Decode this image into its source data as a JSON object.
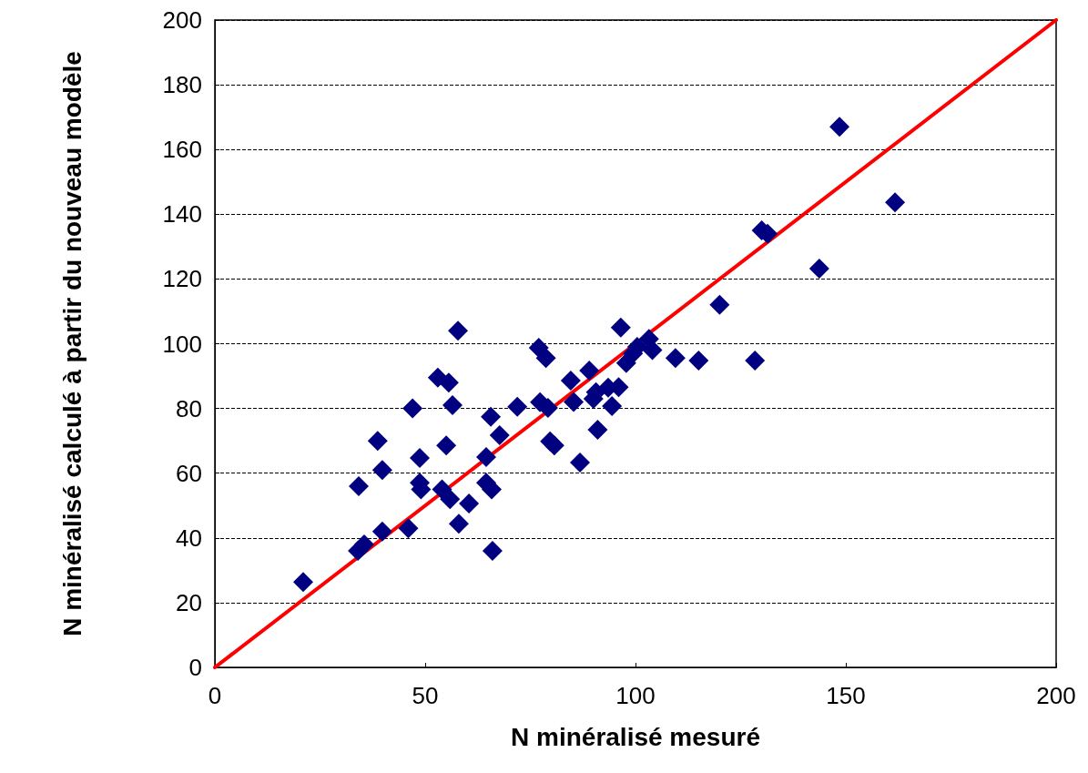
{
  "chart_data": {
    "type": "scatter",
    "xlabel": "N minéralisé mesuré",
    "ylabel": "N minéralisé calculé à partir du nouveau modèle",
    "xlim": [
      0,
      200
    ],
    "xticks": [
      0,
      50,
      100,
      150,
      200
    ],
    "ylim": [
      0,
      200
    ],
    "yticks": [
      0,
      20,
      40,
      60,
      80,
      100,
      120,
      140,
      160,
      180,
      200
    ],
    "grid": "y",
    "marker": "diamond",
    "series": [
      {
        "color": "#000080",
        "x": [
          21,
          34,
          35.5,
          34.2,
          38.7,
          39.8,
          39.8,
          46,
          47,
          48.7,
          48.7,
          49,
          53,
          55.6,
          55,
          56.5,
          57.8,
          54,
          55.9,
          58,
          60.4,
          64.5,
          64.5,
          65.6,
          65.8,
          66,
          67.7,
          71.9,
          77,
          78.7,
          77.3,
          79.2,
          79.7,
          80.7,
          84.6,
          85.3,
          86.8,
          89,
          90.6,
          90,
          91,
          93.5,
          94.4,
          96.5,
          96,
          97.8,
          99.4,
          100.4,
          103.2,
          104,
          109.5,
          115,
          120,
          130,
          131.4,
          128.4,
          143.7,
          148.5,
          161.7
        ],
        "values": [
          26.4,
          36,
          38,
          56,
          70,
          61,
          42,
          43,
          80,
          64.7,
          57,
          55,
          89.5,
          88,
          68.6,
          81,
          104,
          55,
          52,
          44.4,
          50.6,
          65,
          57,
          77.4,
          55,
          36,
          71.7,
          80.5,
          98.7,
          95.6,
          81.9,
          80.2,
          69.8,
          68.6,
          88.6,
          82,
          63.3,
          91.7,
          85,
          83,
          73.4,
          86.4,
          80.7,
          105,
          86.6,
          94,
          97,
          99,
          101.5,
          98,
          95.6,
          94.8,
          112,
          135,
          134,
          94.8,
          123.2,
          167,
          143.7
        ]
      },
      {
        "type": "line",
        "color": "#ff0000",
        "line_style": "solid",
        "marker": "none",
        "x": [
          0,
          200
        ],
        "values": [
          0,
          200
        ]
      }
    ]
  }
}
